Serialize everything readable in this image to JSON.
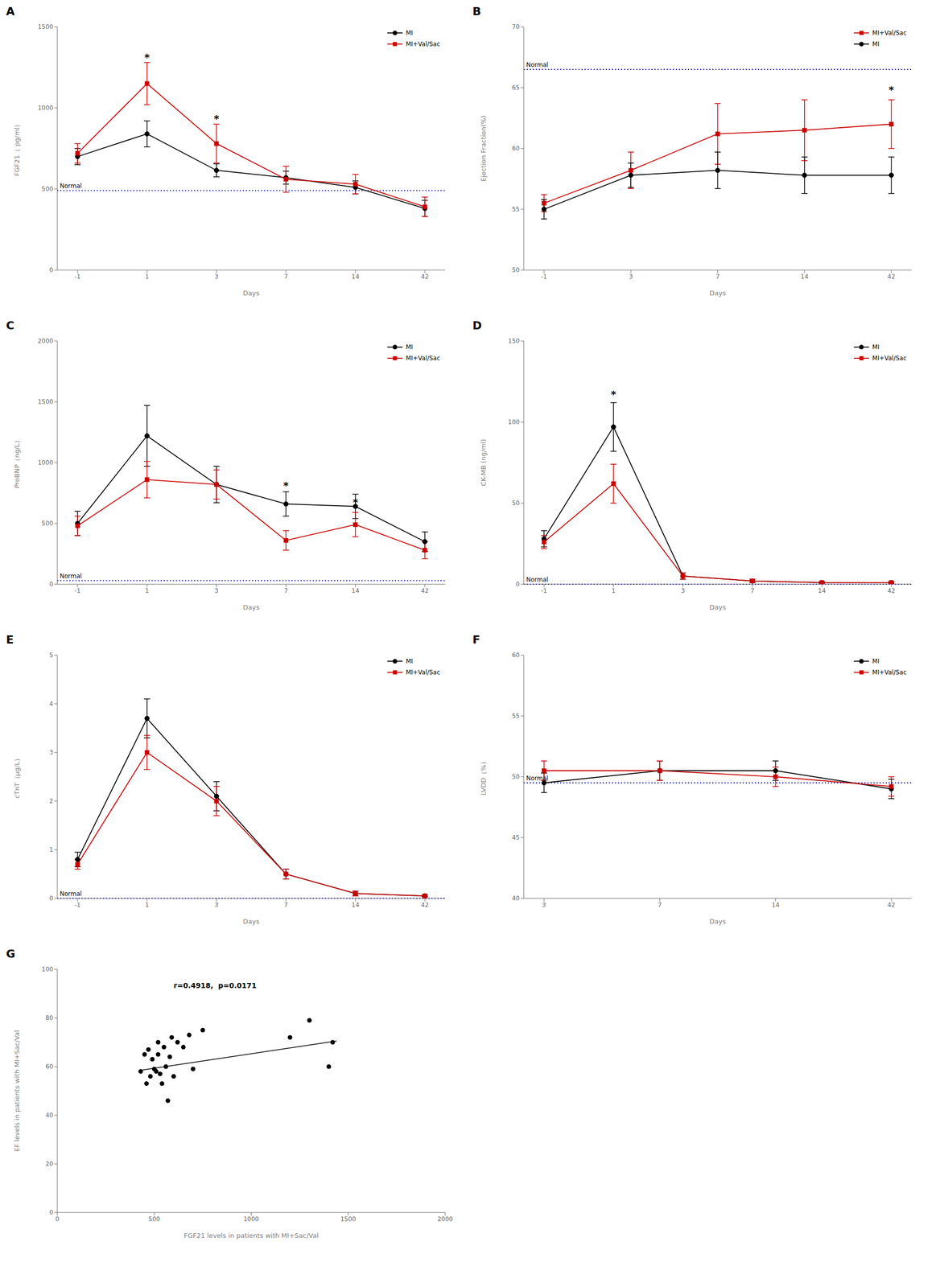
{
  "chart_data": [
    {
      "type": "line",
      "title": "A",
      "xlabel": "Days",
      "ylabel": "FGF21（ pg/ml）",
      "categories": [
        "-1",
        "1",
        "3",
        "7",
        "14",
        "42"
      ],
      "series": [
        {
          "name": "MI",
          "color": "#000000",
          "marker": "circle",
          "values": [
            700,
            840,
            615,
            570,
            510,
            380
          ],
          "errors": [
            50,
            80,
            40,
            40,
            40,
            50
          ]
        },
        {
          "name": "MI+Val/Sac",
          "color": "#cc0000",
          "marker": "square",
          "values": [
            720,
            1150,
            780,
            560,
            530,
            390
          ],
          "errors": [
            60,
            130,
            120,
            80,
            60,
            60
          ]
        }
      ],
      "reference_line": {
        "value": 490,
        "label": "Normal",
        "color": "#0000cc",
        "line_style": "dotted"
      },
      "annotations": [
        {
          "text": "*",
          "x": "1",
          "y": 1310
        },
        {
          "text": "*",
          "x": "3",
          "y": 930
        }
      ],
      "ylim": [
        0,
        1500
      ],
      "yticks": [
        0,
        500,
        1000,
        1500
      ],
      "grid": false,
      "legend": "upper right"
    },
    {
      "type": "line",
      "title": "B",
      "xlabel": "Days",
      "ylabel": "Ejection Fraction(%)",
      "categories": [
        "-1",
        "3",
        "7",
        "14",
        "42"
      ],
      "series": [
        {
          "name": "MI+Val/Sac",
          "color": "#cc0000",
          "marker": "square",
          "values": [
            55.5,
            58.2,
            61.2,
            61.5,
            62.0
          ],
          "errors": [
            0.7,
            1.5,
            2.5,
            2.5,
            2.0
          ]
        },
        {
          "name": "MI",
          "color": "#000000",
          "marker": "circle",
          "values": [
            55.0,
            57.8,
            58.2,
            57.8,
            57.8
          ],
          "errors": [
            0.8,
            1.0,
            1.5,
            1.5,
            1.5
          ]
        }
      ],
      "reference_line": {
        "value": 66.5,
        "label": "Normal",
        "color": "#0000cc",
        "line_style": "dotted"
      },
      "annotations": [
        {
          "text": "*",
          "x": "42",
          "y": 64.8
        }
      ],
      "ylim": [
        50,
        70
      ],
      "yticks": [
        50,
        55,
        60,
        65,
        70
      ],
      "grid": false,
      "legend": "upper right"
    },
    {
      "type": "line",
      "title": "C",
      "xlabel": "Days",
      "ylabel": "ProBNP（ng/L）",
      "categories": [
        "-1",
        "1",
        "3",
        "7",
        "14",
        "42"
      ],
      "series": [
        {
          "name": "MI",
          "color": "#000000",
          "marker": "circle",
          "values": [
            500,
            1220,
            820,
            660,
            640,
            350
          ],
          "errors": [
            100,
            250,
            150,
            100,
            100,
            80
          ]
        },
        {
          "name": "MI+Val/Sac",
          "color": "#cc0000",
          "marker": "square",
          "values": [
            480,
            860,
            820,
            360,
            490,
            280
          ],
          "errors": [
            80,
            150,
            120,
            80,
            100,
            70
          ]
        }
      ],
      "reference_line": {
        "value": 30,
        "label": "Normal",
        "color": "#0000cc",
        "line_style": "dotted"
      },
      "annotations": [
        {
          "text": "*",
          "x": "7",
          "y": 810
        },
        {
          "text": "*",
          "x": "14",
          "y": 670
        }
      ],
      "ylim": [
        0,
        2000
      ],
      "yticks": [
        0,
        500,
        1000,
        1500,
        2000
      ],
      "grid": false,
      "legend": "upper right"
    },
    {
      "type": "line",
      "title": "D",
      "xlabel": "Days",
      "ylabel": "CK-MB (ng/ml)",
      "categories": [
        "-1",
        "1",
        "3",
        "7",
        "14",
        "42"
      ],
      "series": [
        {
          "name": "MI",
          "color": "#000000",
          "marker": "circle",
          "values": [
            28,
            97,
            5,
            2,
            1,
            1
          ],
          "errors": [
            5,
            15,
            2,
            1,
            0.5,
            0.5
          ]
        },
        {
          "name": "MI+Val/Sac",
          "color": "#cc0000",
          "marker": "square",
          "values": [
            26,
            62,
            5,
            2,
            1,
            1
          ],
          "errors": [
            4,
            12,
            2,
            1,
            0.5,
            0.5
          ]
        }
      ],
      "reference_line": {
        "value": 0,
        "label": "Normal",
        "color": "#0000cc",
        "line_style": "dotted"
      },
      "annotations": [
        {
          "text": "*",
          "x": "1",
          "y": 117
        }
      ],
      "ylim": [
        0,
        150
      ],
      "yticks": [
        0,
        50,
        100,
        150
      ],
      "grid": false,
      "legend": "upper right"
    },
    {
      "type": "line",
      "title": "E",
      "xlabel": "Days",
      "ylabel": "cTnT（μg/L）",
      "categories": [
        "-1",
        "1",
        "3",
        "7",
        "14",
        "42"
      ],
      "series": [
        {
          "name": "MI",
          "color": "#000000",
          "marker": "circle",
          "values": [
            0.8,
            3.7,
            2.1,
            0.5,
            0.1,
            0.05
          ],
          "errors": [
            0.15,
            0.4,
            0.3,
            0.1,
            0.05,
            0.02
          ]
        },
        {
          "name": "MI+Val/Sac",
          "color": "#cc0000",
          "marker": "square",
          "values": [
            0.7,
            3.0,
            2.0,
            0.5,
            0.1,
            0.05
          ],
          "errors": [
            0.1,
            0.35,
            0.3,
            0.1,
            0.05,
            0.02
          ]
        }
      ],
      "reference_line": {
        "value": 0,
        "label": "Normal",
        "color": "#0000cc",
        "line_style": "dotted"
      },
      "annotations": [],
      "ylim": [
        0,
        5
      ],
      "yticks": [
        0,
        1,
        2,
        3,
        4,
        5
      ],
      "grid": false,
      "legend": "upper right"
    },
    {
      "type": "line",
      "title": "F",
      "xlabel": "Days",
      "ylabel": "LVDD（%）",
      "categories": [
        "3",
        "7",
        "14",
        "42"
      ],
      "series": [
        {
          "name": "MI",
          "color": "#000000",
          "marker": "circle",
          "values": [
            49.5,
            50.5,
            50.5,
            49.0
          ],
          "errors": [
            0.8,
            0.8,
            0.8,
            0.8
          ]
        },
        {
          "name": "MI+Val/Sac",
          "color": "#cc0000",
          "marker": "square",
          "values": [
            50.5,
            50.5,
            50.0,
            49.2
          ],
          "errors": [
            0.8,
            0.8,
            0.8,
            0.8
          ]
        }
      ],
      "reference_line": {
        "value": 49.5,
        "label": "Normal",
        "color": "#0000cc",
        "line_style": "dotted"
      },
      "annotations": [],
      "ylim": [
        40,
        60
      ],
      "yticks": [
        40,
        45,
        50,
        55,
        60
      ],
      "grid": false,
      "legend": "upper right"
    },
    {
      "type": "scatter",
      "title": "G",
      "xlabel": "FGF21 levels in patients with MI+Sac/Val",
      "ylabel": "EF levels in patients with MI+Sac/Val",
      "x": [
        430,
        450,
        460,
        470,
        480,
        490,
        500,
        510,
        520,
        520,
        530,
        540,
        550,
        560,
        570,
        580,
        590,
        600,
        620,
        650,
        680,
        700,
        750,
        1200,
        1300,
        1400,
        1420
      ],
      "values": [
        58,
        65,
        53,
        67,
        56,
        63,
        59,
        58,
        65,
        70,
        57,
        53,
        68,
        60,
        46,
        64,
        72,
        56,
        70,
        68,
        73,
        59,
        75,
        72,
        79,
        60,
        70
      ],
      "color": "#000000",
      "regression": {
        "x": [
          430,
          1440
        ],
        "values": [
          58.5,
          70.5
        ]
      },
      "annotation": "r=0.4918,  p=0.0171",
      "xlim": [
        0,
        2000
      ],
      "ylim": [
        0,
        100
      ],
      "xticks": [
        0,
        500,
        1000,
        1500,
        2000
      ],
      "yticks": [
        0,
        20,
        40,
        60,
        80,
        100
      ],
      "grid": false
    }
  ]
}
